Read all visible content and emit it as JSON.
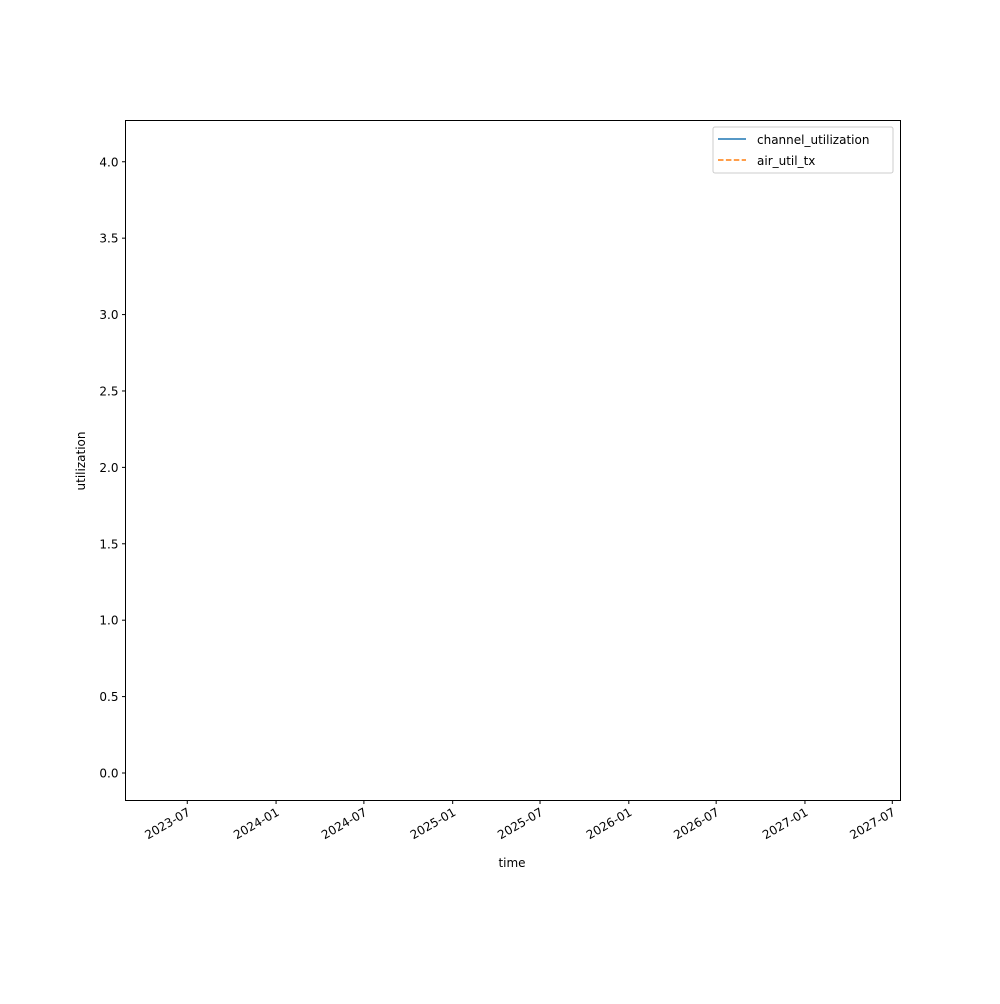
{
  "chart_data": {
    "type": "line",
    "title": "",
    "xlabel": "time",
    "ylabel": "utilization",
    "xlim": [
      "2023-02-23",
      "2027-07-18"
    ],
    "ylim": [
      -0.18,
      4.27
    ],
    "x_ticks": [
      "2023-07",
      "2024-01",
      "2024-07",
      "2025-01",
      "2025-07",
      "2026-01",
      "2026-07",
      "2027-01",
      "2027-07"
    ],
    "y_ticks": [
      "0.0",
      "0.5",
      "1.0",
      "1.5",
      "2.0",
      "2.5",
      "3.0",
      "3.5",
      "4.0"
    ],
    "grid": false,
    "legend_placement": "top-right",
    "series": [
      {
        "name": "channel_utilization",
        "color": "#1f77b4",
        "linestyle": "solid",
        "x": [],
        "y": []
      },
      {
        "name": "air_util_tx",
        "color": "#ff7f0e",
        "linestyle": "dashed",
        "x": [],
        "y": []
      }
    ]
  }
}
